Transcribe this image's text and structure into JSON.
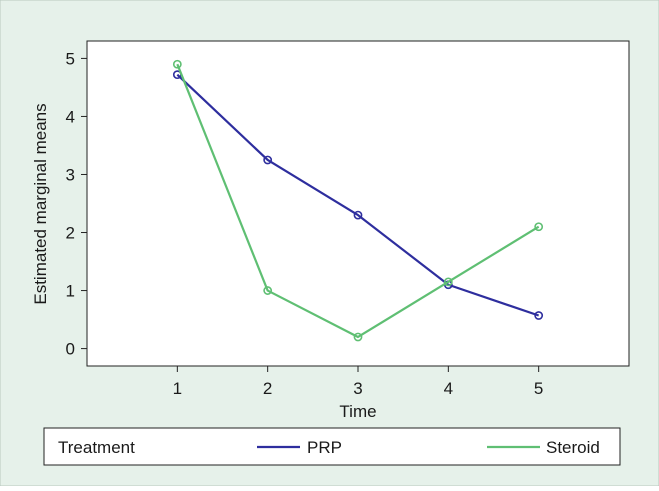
{
  "chart_data": {
    "type": "line",
    "xlabel": "Time",
    "ylabel": "Estimated marginal means",
    "x": [
      1,
      2,
      3,
      4,
      5
    ],
    "xlim": [
      0,
      6
    ],
    "ylim": [
      -0.3,
      5.3
    ],
    "xticks": [
      "1",
      "2",
      "3",
      "4",
      "5"
    ],
    "yticks": [
      "0",
      "1",
      "2",
      "3",
      "4",
      "5"
    ],
    "series": [
      {
        "name": "PRP",
        "values": [
          4.72,
          3.25,
          2.3,
          1.1,
          0.57
        ],
        "color": "#2e2e9e"
      },
      {
        "name": "Steroid",
        "values": [
          4.9,
          1.0,
          0.2,
          1.15,
          2.1
        ],
        "color": "#5fbf73"
      }
    ],
    "legend": {
      "title": "Treatment",
      "placement": "bottom"
    },
    "grid": false,
    "colors": {
      "outer_background": "#e6f1ea",
      "plot_background": "#ffffff",
      "axis": "#222222"
    }
  }
}
